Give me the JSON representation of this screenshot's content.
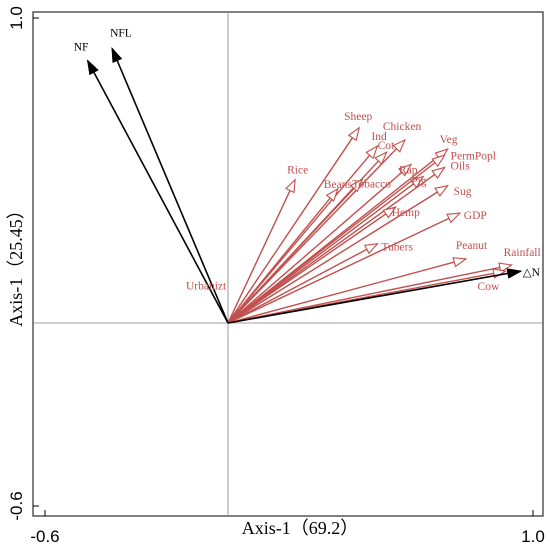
{
  "chart_data": {
    "type": "biplot",
    "xlabel": "Axis-1（69.2）",
    "ylabel": "Axis-1（25.45）",
    "xlim": [
      -0.7,
      1.05
    ],
    "ylim": [
      -0.65,
      1.0
    ],
    "xticks": [
      "-0.6",
      "1.0"
    ],
    "yticks": [
      "1.0",
      "-0.6"
    ],
    "grid": false,
    "colors": {
      "response": "#000000",
      "explanatory": "#c0504d"
    },
    "response_vectors": [
      {
        "name": "NF",
        "x": -0.46,
        "y": 0.86
      },
      {
        "name": "NFL",
        "x": -0.38,
        "y": 0.9
      },
      {
        "name": "△N",
        "x": 0.96,
        "y": 0.17
      }
    ],
    "explanatory_vectors": [
      {
        "name": "Sheep",
        "x": 0.43,
        "y": 0.64
      },
      {
        "name": "Ind",
        "x": 0.49,
        "y": 0.58
      },
      {
        "name": "Cot",
        "x": 0.52,
        "y": 0.56
      },
      {
        "name": "Chicken",
        "x": 0.58,
        "y": 0.6
      },
      {
        "name": "Veg",
        "x": 0.72,
        "y": 0.57
      },
      {
        "name": "PermPopl",
        "x": 0.71,
        "y": 0.55
      },
      {
        "name": "Rap",
        "x": 0.6,
        "y": 0.52
      },
      {
        "name": "Rice",
        "x": 0.22,
        "y": 0.47
      },
      {
        "name": "Beans",
        "x": 0.36,
        "y": 0.44
      },
      {
        "name": "Tobacco",
        "x": 0.44,
        "y": 0.47
      },
      {
        "name": "Pig",
        "x": 0.64,
        "y": 0.48
      },
      {
        "name": "Oils",
        "x": 0.71,
        "y": 0.51
      },
      {
        "name": "Sug",
        "x": 0.72,
        "y": 0.45
      },
      {
        "name": "Hemp",
        "x": 0.55,
        "y": 0.38
      },
      {
        "name": "GDP",
        "x": 0.76,
        "y": 0.36
      },
      {
        "name": "Tubers",
        "x": 0.49,
        "y": 0.26
      },
      {
        "name": "Peanut",
        "x": 0.78,
        "y": 0.21
      },
      {
        "name": "Rainfall",
        "x": 0.93,
        "y": 0.19
      },
      {
        "name": "Cow",
        "x": 0.91,
        "y": 0.17
      },
      {
        "name": "Urbanizt",
        "x": 0.0,
        "y": 0.12
      }
    ]
  }
}
